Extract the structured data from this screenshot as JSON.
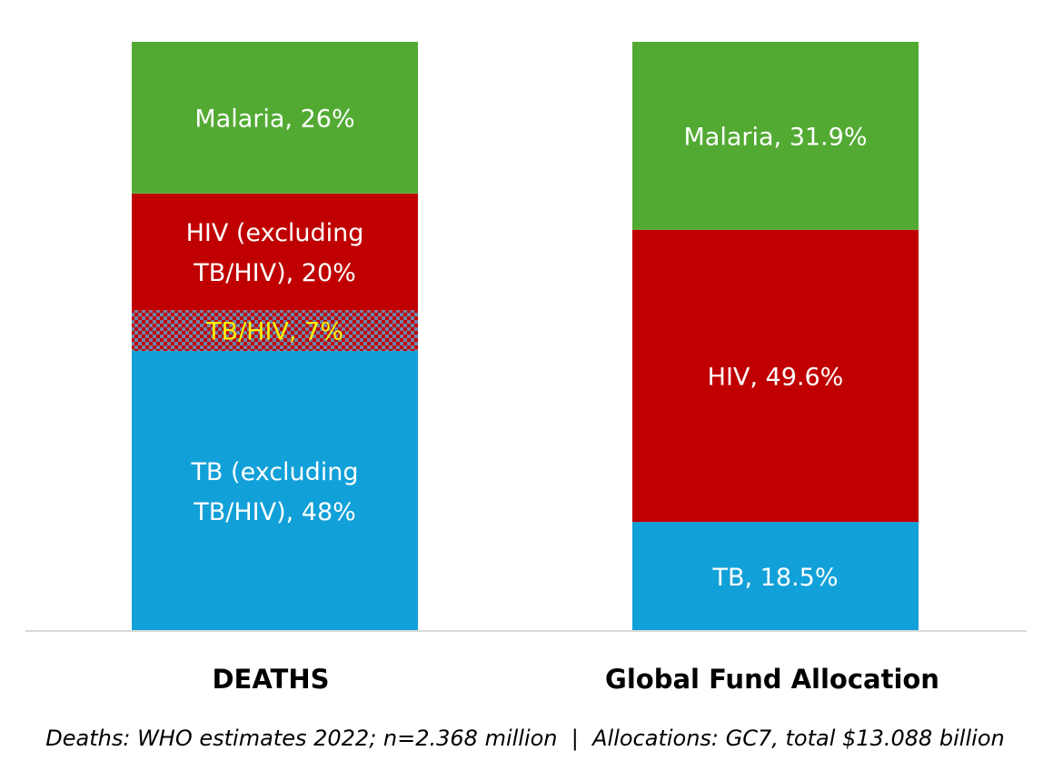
{
  "chart_data": {
    "type": "bar",
    "stacked": true,
    "normalized_percent": true,
    "categories": [
      "DEATHS",
      "Global Fund Allocation"
    ],
    "bars": [
      {
        "category": "DEATHS",
        "segments": [
          {
            "label": "TB (excluding TB/HIV), 48%",
            "value": 48,
            "color": "#12A0D8",
            "text_color": "#FFFFFF",
            "pattern": false
          },
          {
            "label": "TB/HIV, 7%",
            "value": 7,
            "color": "#C00000",
            "text_color": "#FFF200",
            "pattern": true,
            "pattern_color": "#6F84A6"
          },
          {
            "label": "HIV (excluding TB/HIV), 20%",
            "value": 20,
            "color": "#C00000",
            "text_color": "#FFFFFF",
            "pattern": false
          },
          {
            "label": "Malaria, 26%",
            "value": 26,
            "color": "#52AA33",
            "text_color": "#FFFFFF",
            "pattern": false
          }
        ]
      },
      {
        "category": "Global Fund Allocation",
        "segments": [
          {
            "label": "TB, 18.5%",
            "value": 18.5,
            "color": "#12A0D8",
            "text_color": "#FFFFFF",
            "pattern": false
          },
          {
            "label": "HIV, 49.6%",
            "value": 49.6,
            "color": "#C00000",
            "text_color": "#FFFFFF",
            "pattern": false
          },
          {
            "label": "Malaria, 31.9%",
            "value": 31.9,
            "color": "#52AA33",
            "text_color": "#FFFFFF",
            "pattern": false
          }
        ]
      }
    ],
    "source_note": "Deaths: WHO estimates 2022; n=2.368 million  |  Allocations: GC7, total $13.088 billion",
    "grid": false,
    "legend": "none",
    "baseline_color": "#D9D9D9"
  }
}
